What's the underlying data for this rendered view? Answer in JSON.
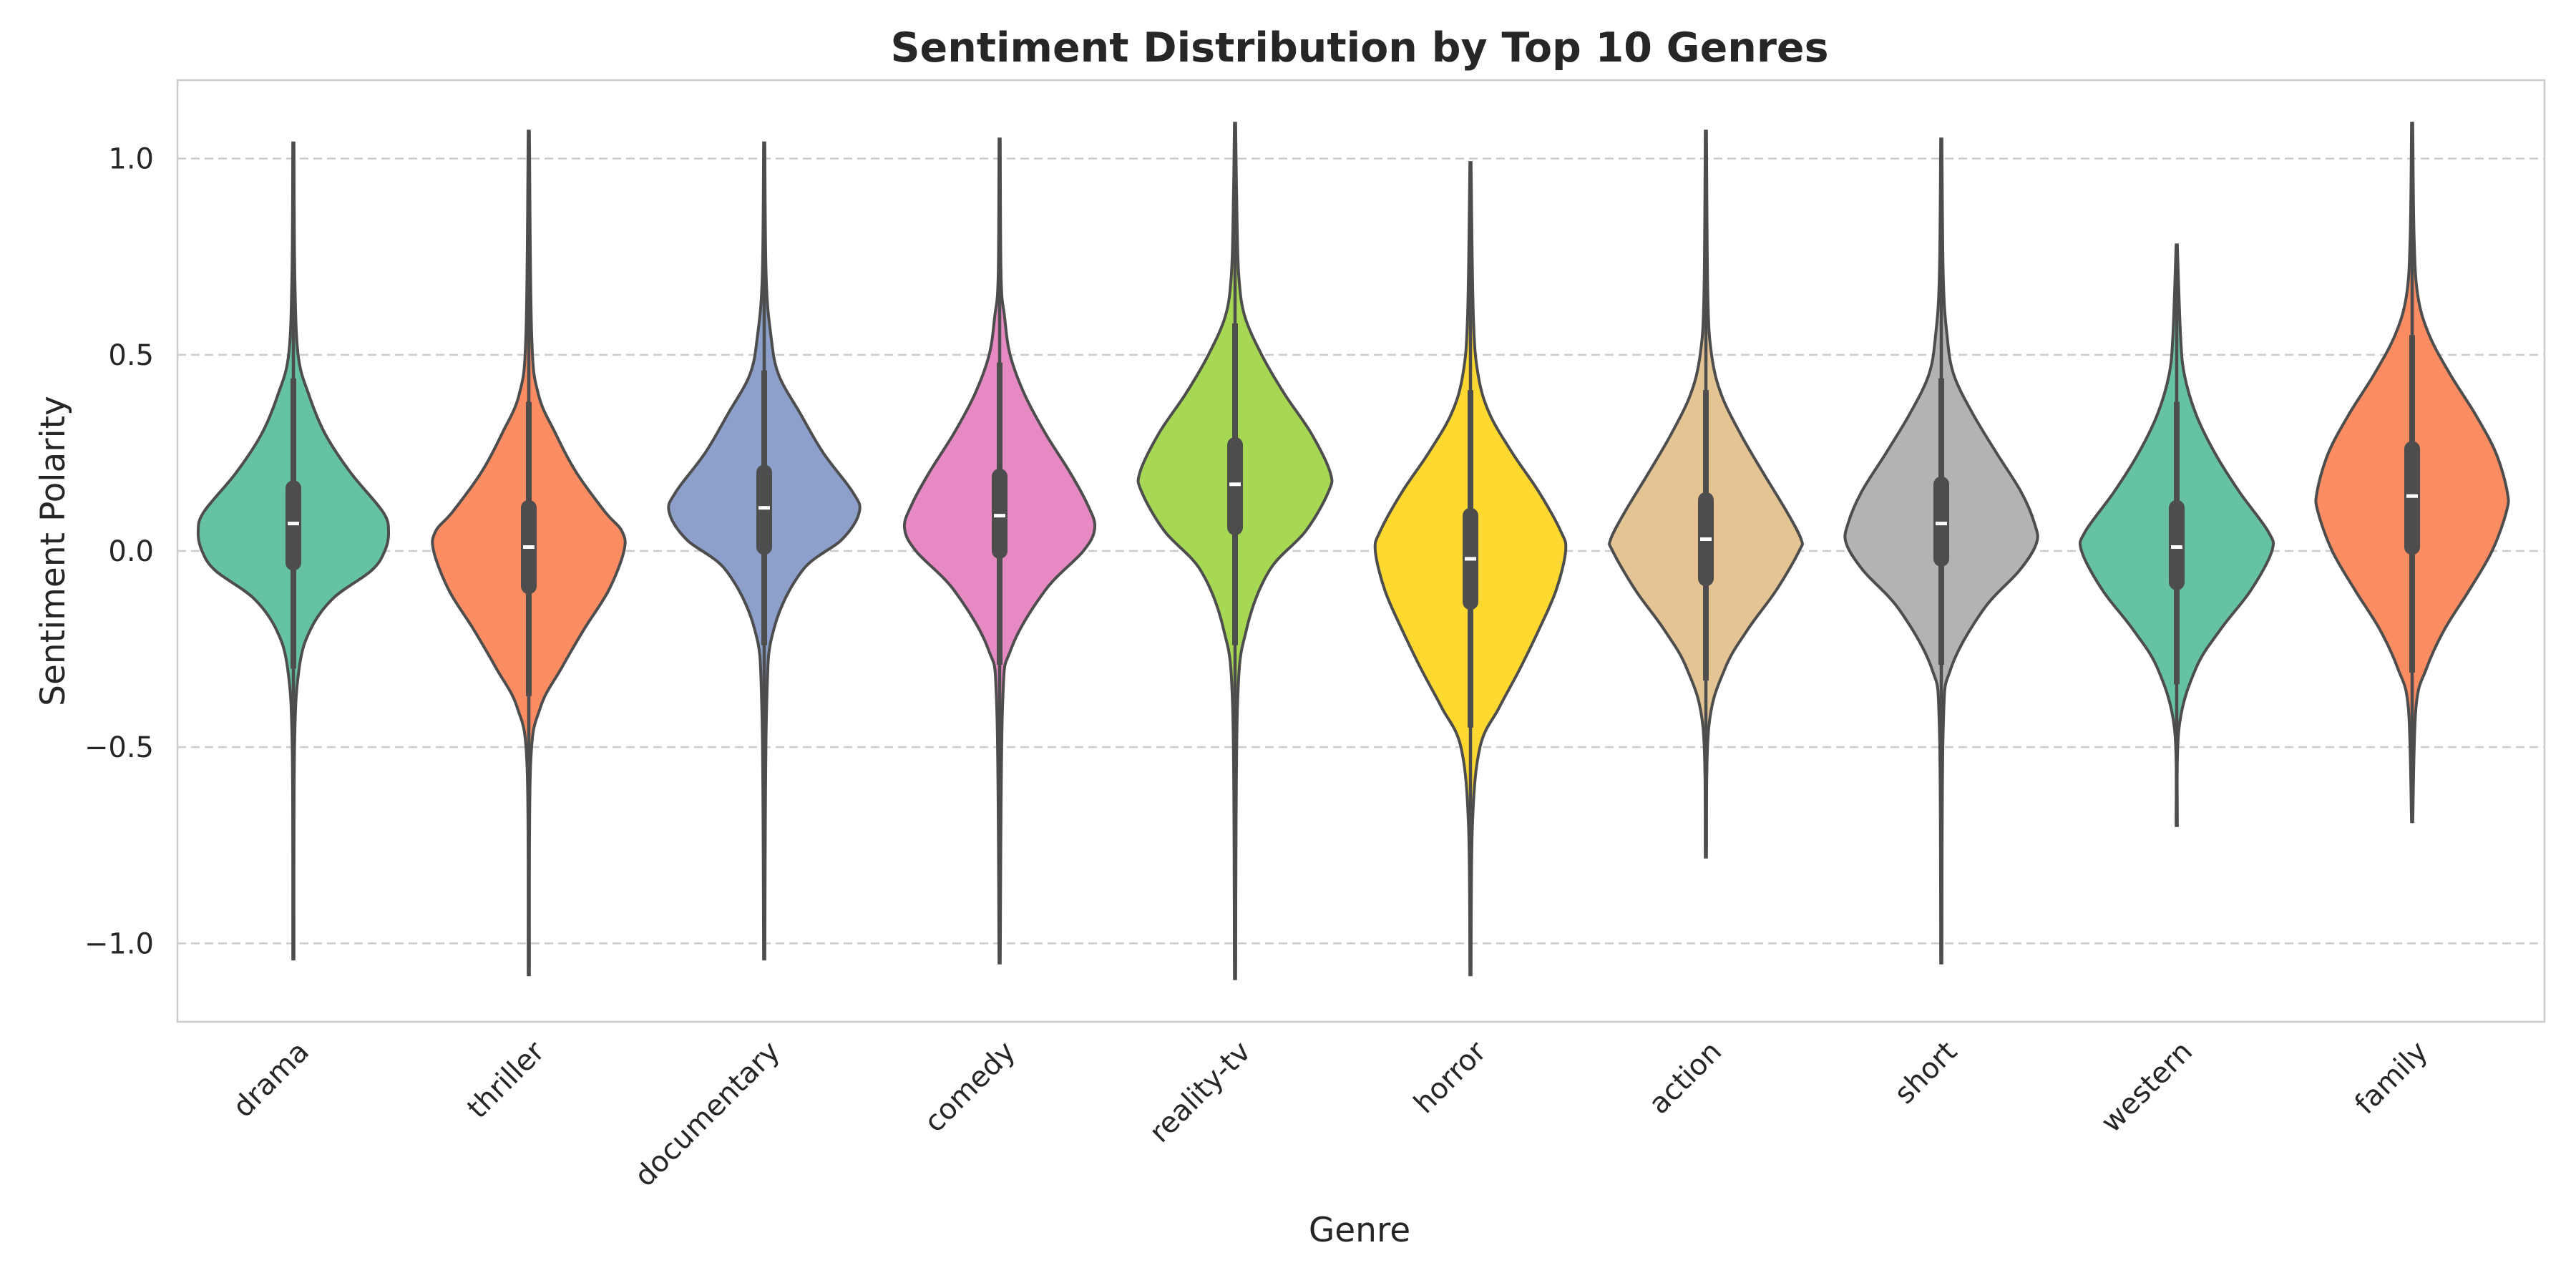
{
  "chart_data": {
    "type": "violin",
    "title": "Sentiment Distribution by Top 10 Genres",
    "xlabel": "Genre",
    "ylabel": "Sentiment Polarity",
    "ylim": [
      -1.2,
      1.2
    ],
    "yticks": [
      1.0,
      0.5,
      0.0,
      -0.5,
      -1.0
    ],
    "ytick_labels": [
      "1.0",
      "0.5",
      "0.0",
      "−0.5",
      "−1.0"
    ],
    "grid": "horizontal-dashed",
    "categories": [
      "drama",
      "thriller",
      "documentary",
      "comedy",
      "reality-tv",
      "horror",
      "action",
      "short",
      "western",
      "family"
    ],
    "series": [
      {
        "category": "drama",
        "color": "#66c2a5",
        "min": -1.04,
        "max": 1.04,
        "whisker_low": -0.3,
        "q1": -0.03,
        "median": 0.07,
        "q3": 0.16,
        "whisker_high": 0.44,
        "density": [
          [
            -1.04,
            0.006
          ],
          [
            -0.5,
            0.012
          ],
          [
            -0.3,
            0.06
          ],
          [
            -0.2,
            0.18
          ],
          [
            -0.12,
            0.42
          ],
          [
            -0.05,
            0.82
          ],
          [
            0.0,
            0.96
          ],
          [
            0.05,
            1.0
          ],
          [
            0.1,
            0.94
          ],
          [
            0.2,
            0.6
          ],
          [
            0.3,
            0.33
          ],
          [
            0.4,
            0.16
          ],
          [
            0.5,
            0.05
          ],
          [
            0.7,
            0.015
          ],
          [
            1.04,
            0.006
          ]
        ]
      },
      {
        "category": "thriller",
        "color": "#fc8d62",
        "min": -1.08,
        "max": 1.07,
        "whisker_low": -0.37,
        "q1": -0.09,
        "median": 0.01,
        "q3": 0.11,
        "whisker_high": 0.38,
        "density": [
          [
            -1.08,
            0.006
          ],
          [
            -0.55,
            0.018
          ],
          [
            -0.4,
            0.12
          ],
          [
            -0.3,
            0.34
          ],
          [
            -0.2,
            0.58
          ],
          [
            -0.1,
            0.84
          ],
          [
            0.0,
            1.0
          ],
          [
            0.05,
            0.98
          ],
          [
            0.1,
            0.8
          ],
          [
            0.2,
            0.5
          ],
          [
            0.3,
            0.28
          ],
          [
            0.4,
            0.1
          ],
          [
            0.55,
            0.03
          ],
          [
            1.07,
            0.006
          ]
        ]
      },
      {
        "category": "documentary",
        "color": "#8da0cb",
        "min": -1.04,
        "max": 1.04,
        "whisker_low": -0.24,
        "q1": 0.01,
        "median": 0.11,
        "q3": 0.2,
        "whisker_high": 0.46,
        "density": [
          [
            -1.04,
            0.006
          ],
          [
            -0.4,
            0.025
          ],
          [
            -0.2,
            0.1
          ],
          [
            -0.05,
            0.4
          ],
          [
            0.03,
            0.82
          ],
          [
            0.1,
            1.0
          ],
          [
            0.15,
            0.93
          ],
          [
            0.25,
            0.62
          ],
          [
            0.35,
            0.38
          ],
          [
            0.45,
            0.15
          ],
          [
            0.55,
            0.07
          ],
          [
            0.7,
            0.02
          ],
          [
            1.04,
            0.006
          ]
        ]
      },
      {
        "category": "comedy",
        "color": "#e78ac3",
        "min": -1.05,
        "max": 1.05,
        "whisker_low": -0.29,
        "q1": 0.0,
        "median": 0.09,
        "q3": 0.19,
        "whisker_high": 0.48,
        "density": [
          [
            -1.05,
            0.006
          ],
          [
            -0.4,
            0.03
          ],
          [
            -0.25,
            0.12
          ],
          [
            -0.1,
            0.48
          ],
          [
            0.0,
            0.88
          ],
          [
            0.06,
            1.0
          ],
          [
            0.12,
            0.92
          ],
          [
            0.2,
            0.74
          ],
          [
            0.3,
            0.48
          ],
          [
            0.4,
            0.26
          ],
          [
            0.5,
            0.11
          ],
          [
            0.6,
            0.05
          ],
          [
            0.7,
            0.015
          ],
          [
            1.05,
            0.006
          ]
        ]
      },
      {
        "category": "reality-tv",
        "color": "#a6d854",
        "min": -1.09,
        "max": 1.09,
        "whisker_low": -0.24,
        "q1": 0.06,
        "median": 0.17,
        "q3": 0.27,
        "whisker_high": 0.58,
        "density": [
          [
            -1.09,
            0.006
          ],
          [
            -0.4,
            0.025
          ],
          [
            -0.2,
            0.12
          ],
          [
            -0.05,
            0.36
          ],
          [
            0.05,
            0.74
          ],
          [
            0.15,
            0.98
          ],
          [
            0.2,
            1.0
          ],
          [
            0.3,
            0.8
          ],
          [
            0.4,
            0.52
          ],
          [
            0.5,
            0.28
          ],
          [
            0.6,
            0.1
          ],
          [
            0.7,
            0.04
          ],
          [
            0.85,
            0.02
          ],
          [
            1.09,
            0.006
          ]
        ]
      },
      {
        "category": "horror",
        "color": "#ffd92f",
        "min": -1.08,
        "max": 0.99,
        "whisker_low": -0.45,
        "q1": -0.13,
        "median": -0.02,
        "q3": 0.09,
        "whisker_high": 0.41,
        "density": [
          [
            -1.08,
            0.006
          ],
          [
            -0.7,
            0.02
          ],
          [
            -0.5,
            0.1
          ],
          [
            -0.4,
            0.3
          ],
          [
            -0.3,
            0.52
          ],
          [
            -0.2,
            0.72
          ],
          [
            -0.1,
            0.9
          ],
          [
            0.0,
            1.0
          ],
          [
            0.05,
            0.95
          ],
          [
            0.15,
            0.72
          ],
          [
            0.25,
            0.44
          ],
          [
            0.35,
            0.2
          ],
          [
            0.45,
            0.08
          ],
          [
            0.6,
            0.03
          ],
          [
            0.99,
            0.006
          ]
        ]
      },
      {
        "category": "action",
        "color": "#e5c494",
        "min": -0.78,
        "max": 1.07,
        "whisker_low": -0.33,
        "q1": -0.07,
        "median": 0.03,
        "q3": 0.13,
        "whisker_high": 0.41,
        "density": [
          [
            -0.78,
            0.006
          ],
          [
            -0.45,
            0.03
          ],
          [
            -0.3,
            0.2
          ],
          [
            -0.2,
            0.44
          ],
          [
            -0.1,
            0.74
          ],
          [
            0.0,
            0.98
          ],
          [
            0.03,
            1.0
          ],
          [
            0.1,
            0.85
          ],
          [
            0.2,
            0.6
          ],
          [
            0.3,
            0.36
          ],
          [
            0.4,
            0.16
          ],
          [
            0.5,
            0.06
          ],
          [
            0.65,
            0.02
          ],
          [
            1.07,
            0.006
          ]
        ]
      },
      {
        "category": "short",
        "color": "#b3b3b3",
        "min": -1.05,
        "max": 1.05,
        "whisker_low": -0.29,
        "q1": -0.02,
        "median": 0.07,
        "q3": 0.17,
        "whisker_high": 0.44,
        "density": [
          [
            -1.05,
            0.006
          ],
          [
            -0.45,
            0.02
          ],
          [
            -0.3,
            0.1
          ],
          [
            -0.15,
            0.44
          ],
          [
            -0.05,
            0.82
          ],
          [
            0.02,
            1.0
          ],
          [
            0.07,
            0.98
          ],
          [
            0.15,
            0.84
          ],
          [
            0.25,
            0.58
          ],
          [
            0.35,
            0.33
          ],
          [
            0.45,
            0.13
          ],
          [
            0.55,
            0.06
          ],
          [
            0.7,
            0.02
          ],
          [
            1.05,
            0.006
          ]
        ]
      },
      {
        "category": "western",
        "color": "#66c2a5",
        "min": -0.7,
        "max": 0.78,
        "whisker_low": -0.34,
        "q1": -0.08,
        "median": 0.01,
        "q3": 0.11,
        "whisker_high": 0.38,
        "density": [
          [
            -0.7,
            0.006
          ],
          [
            -0.45,
            0.025
          ],
          [
            -0.3,
            0.2
          ],
          [
            -0.2,
            0.46
          ],
          [
            -0.1,
            0.78
          ],
          [
            0.0,
            1.0
          ],
          [
            0.05,
            0.96
          ],
          [
            0.15,
            0.66
          ],
          [
            0.25,
            0.4
          ],
          [
            0.35,
            0.2
          ],
          [
            0.45,
            0.08
          ],
          [
            0.55,
            0.04
          ],
          [
            0.78,
            0.006
          ]
        ]
      },
      {
        "category": "family",
        "color": "#fc8d62",
        "min": -0.69,
        "max": 1.09,
        "whisker_low": -0.31,
        "q1": 0.01,
        "median": 0.14,
        "q3": 0.26,
        "whisker_high": 0.55,
        "density": [
          [
            -0.69,
            0.006
          ],
          [
            -0.4,
            0.04
          ],
          [
            -0.3,
            0.15
          ],
          [
            -0.2,
            0.34
          ],
          [
            -0.1,
            0.6
          ],
          [
            0.0,
            0.84
          ],
          [
            0.1,
            0.99
          ],
          [
            0.15,
            1.0
          ],
          [
            0.25,
            0.88
          ],
          [
            0.35,
            0.66
          ],
          [
            0.45,
            0.4
          ],
          [
            0.55,
            0.18
          ],
          [
            0.65,
            0.06
          ],
          [
            0.8,
            0.02
          ],
          [
            1.09,
            0.006
          ]
        ]
      }
    ]
  }
}
